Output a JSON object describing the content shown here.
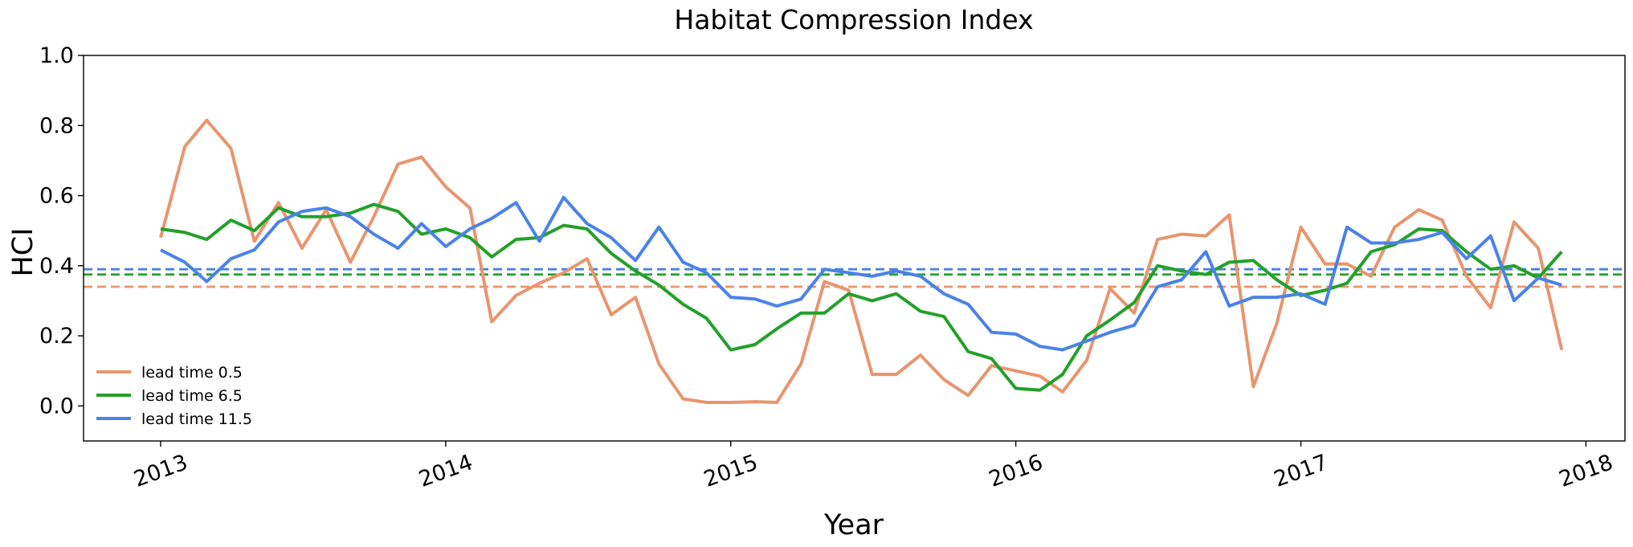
{
  "chart_data": {
    "type": "line",
    "title": "Habitat Compression Index",
    "xlabel": "Year",
    "ylabel": "HCI",
    "xlim": [
      "2012-09-24",
      "2018-02-20"
    ],
    "ylim": [
      -0.1,
      1.0
    ],
    "x_ticks": [
      "2013",
      "2014",
      "2015",
      "2016",
      "2017",
      "2018"
    ],
    "y_ticks": [
      "0.0",
      "0.2",
      "0.4",
      "0.6",
      "0.8",
      "1.0"
    ],
    "grid": false,
    "legend_position": "lower-left",
    "x": [
      "2013-01",
      "2013-02",
      "2013-03",
      "2013-04",
      "2013-05",
      "2013-06",
      "2013-07",
      "2013-08",
      "2013-09",
      "2013-10",
      "2013-11",
      "2013-12",
      "2014-01",
      "2014-02",
      "2014-03",
      "2014-04",
      "2014-05",
      "2014-06",
      "2014-07",
      "2014-08",
      "2014-09",
      "2014-10",
      "2014-11",
      "2014-12",
      "2015-01",
      "2015-02",
      "2015-03",
      "2015-04",
      "2015-05",
      "2015-06",
      "2015-07",
      "2015-08",
      "2015-09",
      "2015-10",
      "2015-11",
      "2015-12",
      "2016-01",
      "2016-02",
      "2016-03",
      "2016-04",
      "2016-05",
      "2016-06",
      "2016-07",
      "2016-08",
      "2016-09",
      "2016-10",
      "2016-11",
      "2016-12",
      "2017-01",
      "2017-02",
      "2017-03",
      "2017-04",
      "2017-05",
      "2017-06",
      "2017-07",
      "2017-08",
      "2017-09",
      "2017-10",
      "2017-11",
      "2017-12"
    ],
    "series": [
      {
        "name": "lead time 0.5",
        "color": "#E8956E",
        "mean": 0.34,
        "values": [
          0.48,
          0.74,
          0.815,
          0.735,
          0.47,
          0.58,
          0.45,
          0.56,
          0.41,
          0.54,
          0.69,
          0.71,
          0.625,
          0.565,
          0.24,
          0.315,
          0.35,
          0.38,
          0.42,
          0.26,
          0.31,
          0.12,
          0.02,
          0.01,
          0.01,
          0.012,
          0.01,
          0.12,
          0.355,
          0.33,
          0.09,
          0.09,
          0.145,
          0.075,
          0.03,
          0.115,
          0.1,
          0.085,
          0.04,
          0.13,
          0.335,
          0.265,
          0.475,
          0.49,
          0.485,
          0.545,
          0.055,
          0.235,
          0.51,
          0.405,
          0.405,
          0.37,
          0.51,
          0.56,
          0.53,
          0.37,
          0.28,
          0.525,
          0.45,
          0.16
        ]
      },
      {
        "name": "lead time 6.5",
        "color": "#23A02A",
        "mean": 0.375,
        "values": [
          0.505,
          0.495,
          0.475,
          0.53,
          0.5,
          0.565,
          0.54,
          0.54,
          0.55,
          0.575,
          0.555,
          0.49,
          0.505,
          0.48,
          0.425,
          0.475,
          0.48,
          0.515,
          0.505,
          0.435,
          0.385,
          0.345,
          0.29,
          0.25,
          0.16,
          0.175,
          0.22,
          0.265,
          0.265,
          0.32,
          0.3,
          0.32,
          0.27,
          0.255,
          0.155,
          0.135,
          0.05,
          0.045,
          0.09,
          0.2,
          0.245,
          0.295,
          0.4,
          0.385,
          0.375,
          0.41,
          0.415,
          0.36,
          0.315,
          0.33,
          0.35,
          0.44,
          0.46,
          0.505,
          0.5,
          0.44,
          0.39,
          0.4,
          0.365,
          0.44
        ]
      },
      {
        "name": "lead time 11.5",
        "color": "#4A82E8",
        "mean": 0.39,
        "values": [
          0.445,
          0.41,
          0.355,
          0.42,
          0.445,
          0.525,
          0.555,
          0.565,
          0.54,
          0.49,
          0.45,
          0.52,
          0.455,
          0.505,
          0.535,
          0.58,
          0.47,
          0.595,
          0.52,
          0.48,
          0.415,
          0.51,
          0.41,
          0.38,
          0.31,
          0.305,
          0.285,
          0.305,
          0.39,
          0.38,
          0.37,
          0.385,
          0.37,
          0.32,
          0.29,
          0.21,
          0.205,
          0.17,
          0.16,
          0.185,
          0.21,
          0.23,
          0.34,
          0.36,
          0.44,
          0.285,
          0.31,
          0.31,
          0.32,
          0.29,
          0.51,
          0.465,
          0.465,
          0.475,
          0.495,
          0.42,
          0.485,
          0.3,
          0.365,
          0.345
        ]
      }
    ]
  }
}
